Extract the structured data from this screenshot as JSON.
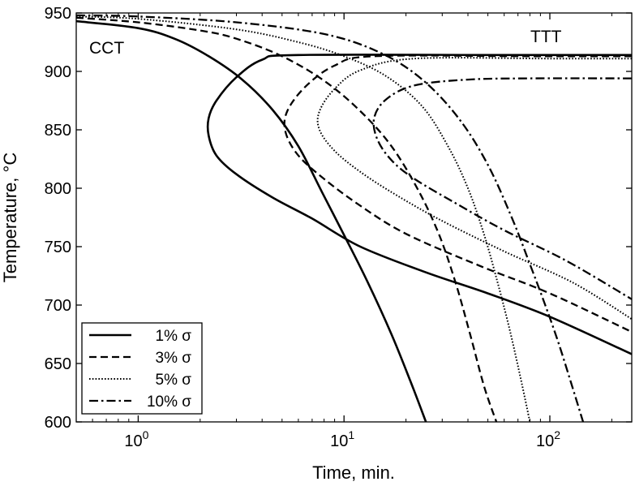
{
  "chart_data": {
    "type": "line",
    "title": "",
    "xlabel": "Time, min.",
    "ylabel": "Temperature, °C",
    "xscale": "log",
    "xlim": [
      0.5,
      250
    ],
    "ylim": [
      600,
      950
    ],
    "x_ticks": [
      {
        "value": 1,
        "base": "10",
        "exp": "0"
      },
      {
        "value": 10,
        "base": "10",
        "exp": "1"
      },
      {
        "value": 100,
        "base": "10",
        "exp": "2"
      }
    ],
    "y_ticks": [
      600,
      650,
      700,
      750,
      800,
      850,
      900,
      950
    ],
    "grid": false,
    "legend_position": "bottom-left",
    "annotations": [
      "CCT",
      "TTT"
    ],
    "series": [
      {
        "name": "1% σ",
        "style": "solid",
        "curves": [
          {
            "label": "TTT",
            "points": [
              [
                250,
                914
              ],
              [
                60,
                914
              ],
              [
                6,
                914
              ],
              [
                4,
                910
              ],
              [
                3,
                895
              ],
              [
                2.4,
                875
              ],
              [
                2.2,
                860
              ],
              [
                2.2,
                845
              ],
              [
                2.4,
                828
              ],
              [
                3,
                812
              ],
              [
                4.5,
                792
              ],
              [
                7,
                774
              ],
              [
                12,
                750
              ],
              [
                25,
                728
              ],
              [
                50,
                710
              ],
              [
                100,
                690
              ],
              [
                250,
                658
              ]
            ]
          },
          {
            "label": "CCT",
            "points": [
              [
                0.5,
                943
              ],
              [
                1,
                937
              ],
              [
                1.5,
                928
              ],
              [
                2.2,
                913
              ],
              [
                3.2,
                893
              ],
              [
                4.5,
                867
              ],
              [
                6,
                836
              ],
              [
                7.8,
                797
              ],
              [
                10,
                760
              ],
              [
                13,
                720
              ],
              [
                17,
                675
              ],
              [
                21,
                635
              ],
              [
                25,
                600
              ]
            ]
          }
        ]
      },
      {
        "name": "3% σ",
        "style": "dashed",
        "curves": [
          {
            "label": "TTT",
            "points": [
              [
                250,
                913
              ],
              [
                80,
                913
              ],
              [
                14,
                913
              ],
              [
                9,
                905
              ],
              [
                6.5,
                887
              ],
              [
                5.3,
                866
              ],
              [
                5.2,
                848
              ],
              [
                6,
                828
              ],
              [
                8,
                808
              ],
              [
                12,
                785
              ],
              [
                20,
                761
              ],
              [
                45,
                734
              ],
              [
                100,
                710
              ],
              [
                250,
                677
              ]
            ]
          },
          {
            "label": "CCT",
            "points": [
              [
                0.5,
                946
              ],
              [
                1,
                942
              ],
              [
                2,
                935
              ],
              [
                3,
                928
              ],
              [
                5,
                913
              ],
              [
                8,
                892
              ],
              [
                12,
                866
              ],
              [
                17,
                836
              ],
              [
                23,
                798
              ],
              [
                29,
                760
              ],
              [
                35,
                718
              ],
              [
                41,
                675
              ],
              [
                48,
                630
              ],
              [
                55,
                600
              ]
            ]
          }
        ]
      },
      {
        "name": "5% σ",
        "style": "dotted",
        "curves": [
          {
            "label": "TTT",
            "points": [
              [
                250,
                911
              ],
              [
                100,
                911
              ],
              [
                22,
                911
              ],
              [
                12,
                901
              ],
              [
                9,
                885
              ],
              [
                7.6,
                866
              ],
              [
                7.6,
                850
              ],
              [
                9,
                832
              ],
              [
                12,
                814
              ],
              [
                18,
                794
              ],
              [
                30,
                772
              ],
              [
                60,
                746
              ],
              [
                130,
                719
              ],
              [
                250,
                688
              ]
            ]
          },
          {
            "label": "CCT",
            "points": [
              [
                0.5,
                947
              ],
              [
                1,
                945
              ],
              [
                3,
                936
              ],
              [
                6,
                925
              ],
              [
                10,
                913
              ],
              [
                16,
                896
              ],
              [
                24,
                870
              ],
              [
                32,
                836
              ],
              [
                40,
                800
              ],
              [
                48,
                760
              ],
              [
                56,
                718
              ],
              [
                64,
                678
              ],
              [
                72,
                638
              ],
              [
                80,
                600
              ]
            ]
          }
        ]
      },
      {
        "name": "10% σ",
        "style": "dash-dot",
        "curves": [
          {
            "label": "TTT",
            "points": [
              [
                250,
                894
              ],
              [
                80,
                894
              ],
              [
                40,
                893
              ],
              [
                22,
                888
              ],
              [
                16,
                876
              ],
              [
                14,
                860
              ],
              [
                14.5,
                842
              ],
              [
                17,
                824
              ],
              [
                22,
                808
              ],
              [
                35,
                787
              ],
              [
                60,
                764
              ],
              [
                120,
                738
              ],
              [
                250,
                705
              ]
            ]
          },
          {
            "label": "CCT",
            "points": [
              [
                0.5,
                948
              ],
              [
                1,
                947
              ],
              [
                3,
                942
              ],
              [
                8,
                932
              ],
              [
                15,
                916
              ],
              [
                24,
                893
              ],
              [
                36,
                860
              ],
              [
                50,
                820
              ],
              [
                66,
                773
              ],
              [
                80,
                735
              ],
              [
                95,
                700
              ],
              [
                110,
                668
              ],
              [
                126,
                635
              ],
              [
                145,
                600
              ]
            ]
          }
        ]
      }
    ]
  }
}
